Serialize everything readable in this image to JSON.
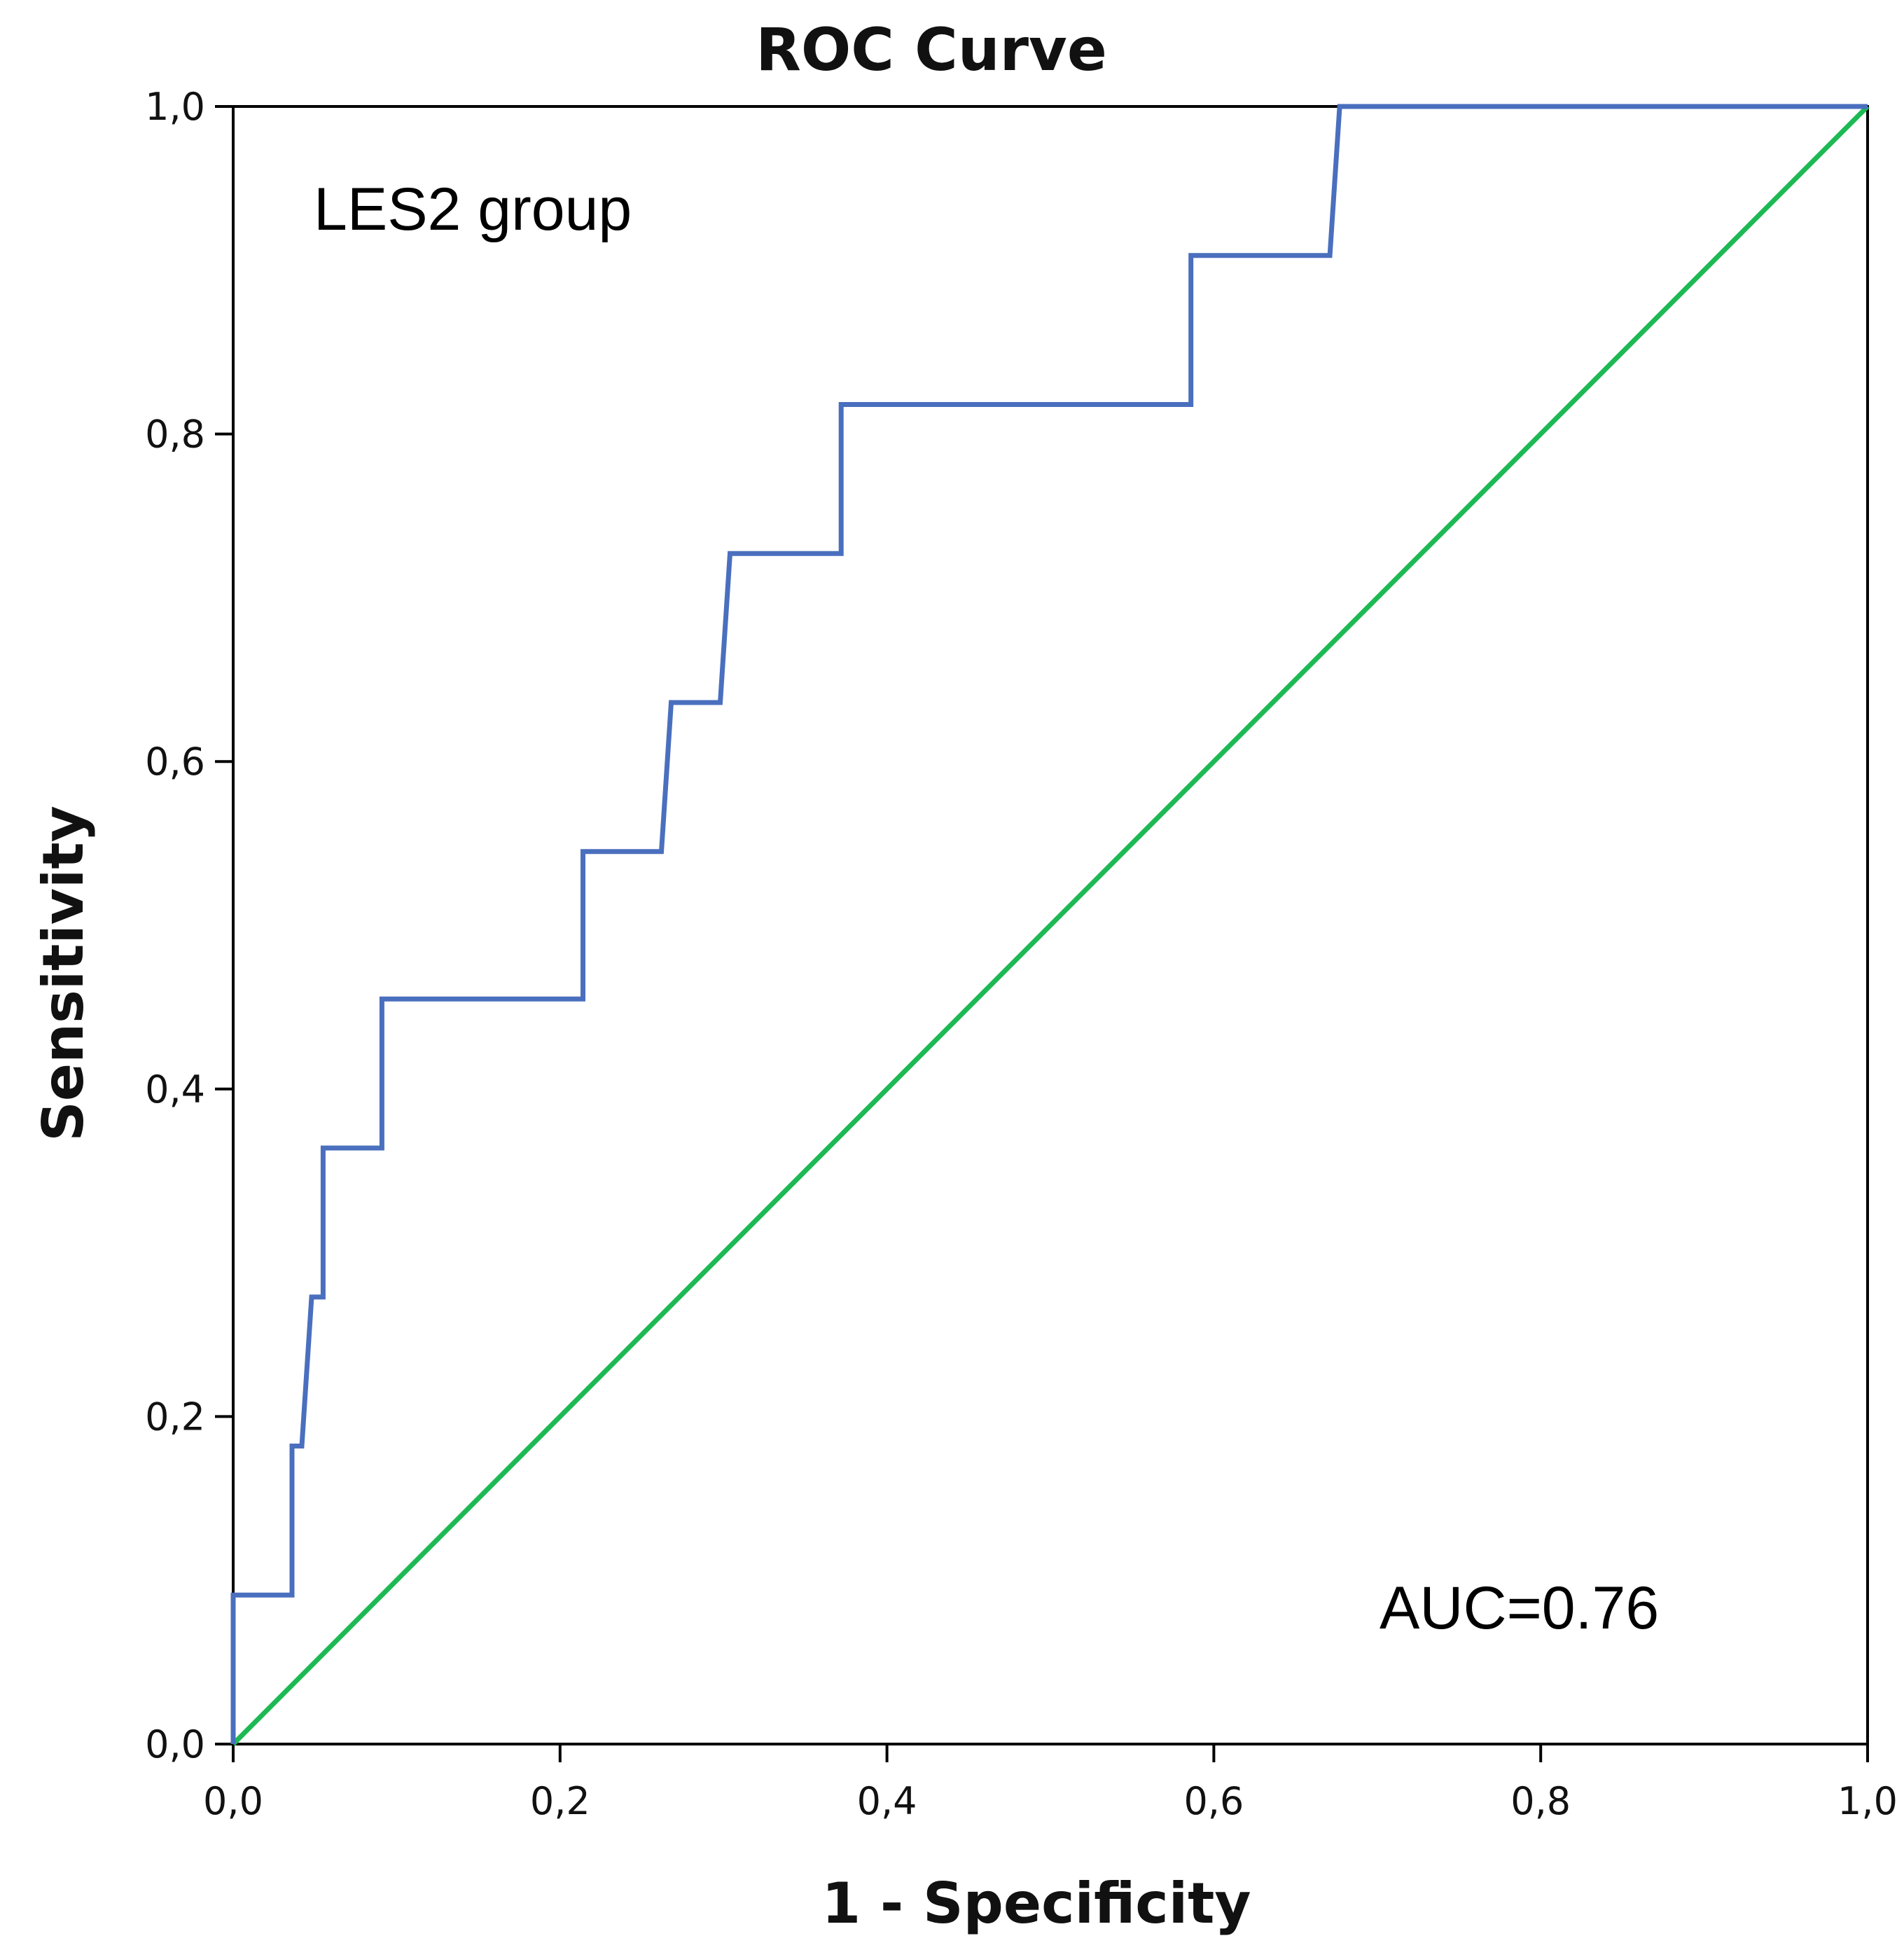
{
  "chart_data": {
    "type": "line",
    "title": "ROC Curve",
    "xlabel": "1 - Specificity",
    "ylabel": "Sensitivity",
    "xlim": [
      0,
      1
    ],
    "ylim": [
      0,
      1
    ],
    "x_ticks": [
      0,
      0.2,
      0.4,
      0.6,
      0.8,
      1.0
    ],
    "y_ticks": [
      0,
      0.2,
      0.4,
      0.6,
      0.8,
      1.0
    ],
    "x_tick_labels": [
      "0,0",
      "0,2",
      "0,4",
      "0,6",
      "0,8",
      "1,0"
    ],
    "y_tick_labels": [
      "0,0",
      "0,2",
      "0,4",
      "0,6",
      "0,8",
      "1,0"
    ],
    "grid": false,
    "legend": "none",
    "annotations": {
      "group": "LES2 group",
      "auc": "AUC=0.76"
    },
    "series": [
      {
        "color": "#4a6fbe",
        "points": [
          [
            0.0,
            0.0
          ],
          [
            0.0,
            0.091
          ],
          [
            0.036,
            0.091
          ],
          [
            0.036,
            0.182
          ],
          [
            0.042,
            0.182
          ],
          [
            0.048,
            0.273
          ],
          [
            0.055,
            0.273
          ],
          [
            0.055,
            0.364
          ],
          [
            0.091,
            0.364
          ],
          [
            0.091,
            0.455
          ],
          [
            0.214,
            0.455
          ],
          [
            0.214,
            0.545
          ],
          [
            0.262,
            0.545
          ],
          [
            0.268,
            0.636
          ],
          [
            0.298,
            0.636
          ],
          [
            0.304,
            0.727
          ],
          [
            0.372,
            0.727
          ],
          [
            0.372,
            0.818
          ],
          [
            0.586,
            0.818
          ],
          [
            0.586,
            0.909
          ],
          [
            0.671,
            0.909
          ],
          [
            0.677,
            1.0
          ],
          [
            1.0,
            1.0
          ]
        ]
      },
      {
        "color": "#1db954",
        "points": [
          [
            0.0,
            0.0
          ],
          [
            1.0,
            1.0
          ]
        ]
      }
    ]
  }
}
